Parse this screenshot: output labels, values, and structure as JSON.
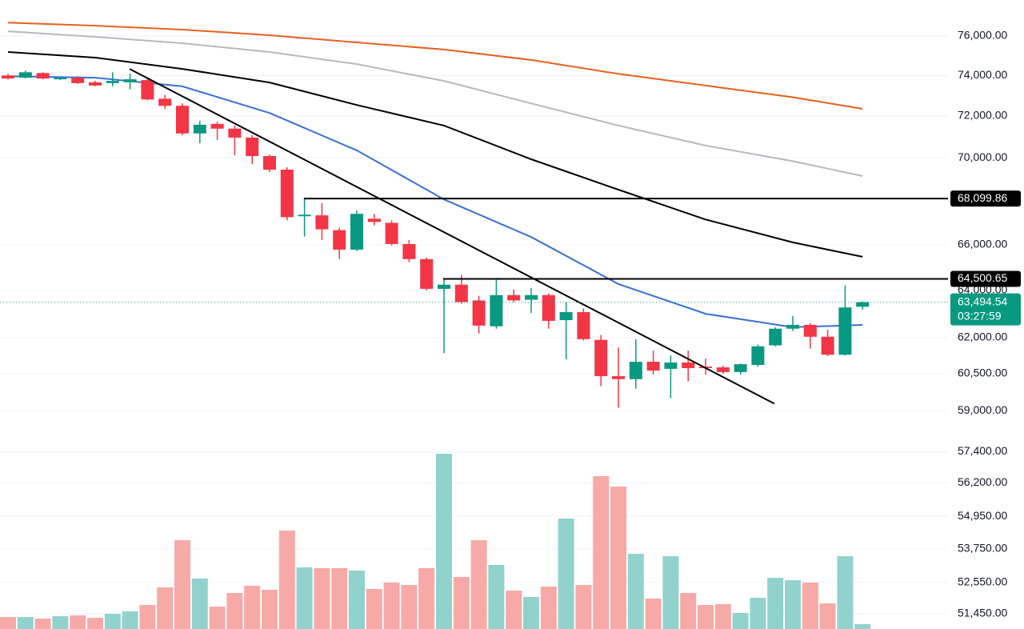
{
  "chart_data": {
    "type": "candlestick",
    "scale": "log",
    "ylim": [
      50920,
      77870
    ],
    "yticks": [
      {
        "value": 76000,
        "label": "76,000.00"
      },
      {
        "value": 74000,
        "label": "74,000.00"
      },
      {
        "value": 72000,
        "label": "72,000.00"
      },
      {
        "value": 70000,
        "label": "70,000.00"
      },
      {
        "value": 66000,
        "label": "66,000.00"
      },
      {
        "value": 64000,
        "label": "64,000.00"
      },
      {
        "value": 62000,
        "label": "62,000.00"
      },
      {
        "value": 60500,
        "label": "60,500.00"
      },
      {
        "value": 59000,
        "label": "59,000.00"
      },
      {
        "value": 57400,
        "label": "57,400.00"
      },
      {
        "value": 56200,
        "label": "56,200.00"
      },
      {
        "value": 54950,
        "label": "54,950.00"
      },
      {
        "value": 53750,
        "label": "53,750.00"
      },
      {
        "value": 52550,
        "label": "52,550.00"
      },
      {
        "value": 51450,
        "label": "51,450.00"
      }
    ],
    "grid": true,
    "up_color": "#089981",
    "down_color": "#f23645",
    "open": [
      74000,
      73890,
      74120,
      73810,
      73890,
      73660,
      73620,
      73660,
      73770,
      72850,
      72500,
      71160,
      71620,
      71390,
      70960,
      70080,
      69440,
      67290,
      67330,
      66660,
      65790,
      67180,
      66990,
      66040,
      65370,
      64070,
      64250,
      63570,
      62470,
      63800,
      63600,
      63800,
      62730,
      63070,
      61900,
      60400,
      60280,
      60990,
      60700,
      60960,
      60790,
      60760,
      60570,
      60860,
      61670,
      62370,
      62530,
      62030,
      61280,
      63300
    ],
    "high": [
      74080,
      74240,
      74160,
      73930,
      73960,
      73730,
      74160,
      74080,
      73850,
      73040,
      72620,
      71770,
      71730,
      71540,
      71080,
      70150,
      69550,
      68140,
      67880,
      66770,
      67550,
      67400,
      67100,
      66220,
      65440,
      64460,
      64670,
      63770,
      64460,
      64040,
      64110,
      63870,
      63500,
      63230,
      62100,
      61580,
      61930,
      61450,
      61250,
      61450,
      61120,
      60830,
      60920,
      61700,
      62430,
      62900,
      62600,
      62330,
      64210,
      63530
    ],
    "low": [
      73810,
      73850,
      73810,
      73770,
      73580,
      73460,
      73460,
      73310,
      72770,
      72350,
      71080,
      70690,
      70850,
      70120,
      69700,
      69330,
      67100,
      66370,
      66220,
      65370,
      65720,
      66880,
      65970,
      65230,
      64000,
      61350,
      63430,
      62170,
      62370,
      63500,
      63030,
      62370,
      61090,
      61870,
      59990,
      59130,
      59890,
      60470,
      59510,
      60190,
      60470,
      60500,
      60470,
      60790,
      61630,
      62270,
      61540,
      61220,
      61250,
      63170
    ],
    "close": [
      73850,
      74160,
      73850,
      73890,
      73620,
      73500,
      73730,
      73810,
      72810,
      72500,
      71160,
      71580,
      71390,
      70960,
      70080,
      69440,
      67250,
      67360,
      66700,
      65790,
      67400,
      67030,
      66040,
      65370,
      64070,
      64250,
      63500,
      62500,
      63800,
      63570,
      63800,
      62700,
      63070,
      61930,
      60400,
      60280,
      60990,
      60630,
      60960,
      60730,
      60730,
      60570,
      60890,
      61630,
      62370,
      62530,
      62030,
      61280,
      63270,
      63494.54
    ],
    "volume": {
      "values": [
        15,
        15,
        13,
        16,
        17,
        14,
        19,
        22,
        30,
        52,
        111,
        63,
        28,
        45,
        54,
        49,
        123,
        77,
        76,
        76,
        73,
        50,
        58,
        55,
        76,
        219,
        65,
        111,
        80,
        48,
        40,
        53,
        138,
        55,
        191,
        178,
        94,
        38,
        91,
        45,
        30,
        31,
        20,
        39,
        64,
        61,
        58,
        32,
        91,
        6
      ],
      "lim": [
        0,
        219
      ],
      "up_color": "#92d2cc",
      "down_color": "#f7a9a7"
    },
    "moving_averages": [
      {
        "color": "#e8601c",
        "x": [
          0,
          5,
          10,
          15,
          20,
          25,
          30,
          35,
          40,
          45,
          49
        ],
        "values": [
          76690,
          76530,
          76330,
          76040,
          75670,
          75310,
          74780,
          74080,
          73500,
          72920,
          72350
        ]
      },
      {
        "color": "#b8b8c0",
        "x": [
          0,
          5,
          10,
          15,
          20,
          25,
          30,
          35,
          40,
          45,
          49
        ],
        "values": [
          76240,
          75960,
          75630,
          75180,
          74570,
          73730,
          72620,
          71540,
          70580,
          69840,
          69140
        ]
      },
      {
        "color": "#000000",
        "x": [
          0,
          5,
          10,
          15,
          20,
          25,
          30,
          35,
          40,
          45,
          49
        ],
        "values": [
          75180,
          74900,
          74330,
          73650,
          72540,
          71540,
          69930,
          68510,
          67140,
          66110,
          65470
        ]
      },
      {
        "color": "#3a6fd8",
        "x": [
          0,
          5,
          10,
          15,
          20,
          25,
          30,
          35,
          40,
          45,
          49
        ],
        "values": [
          73960,
          73890,
          73460,
          72150,
          70350,
          68060,
          66350,
          64280,
          63000,
          62430,
          62530
        ]
      }
    ],
    "trendline": {
      "color": "#000000",
      "x": [
        6.97,
        43.94
      ],
      "values": [
        74330,
        59290
      ]
    },
    "price_lines": [
      {
        "value": 68099.86,
        "label": "68,099.86",
        "x_start": 16.97
      },
      {
        "value": 64500.65,
        "label": "64,500.65",
        "x_start": 24.95
      }
    ],
    "last_price": {
      "value": 63494.54,
      "label": "63,494.54",
      "countdown": "03:27:59",
      "color": "#089981"
    }
  }
}
